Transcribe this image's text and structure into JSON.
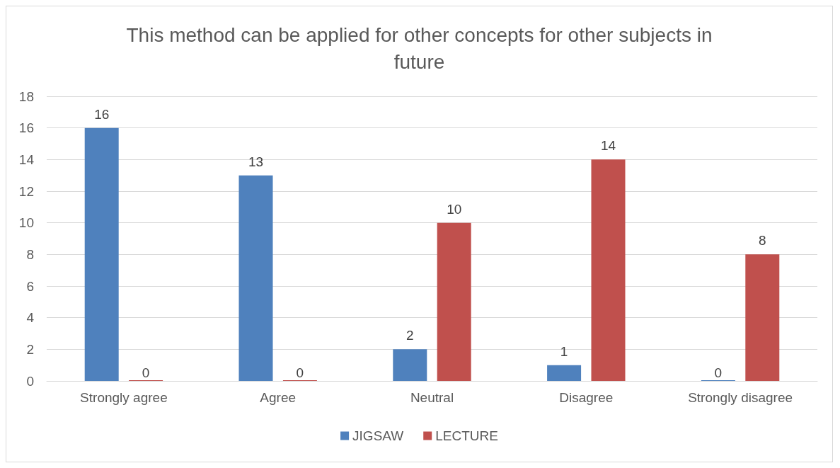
{
  "chart_data": {
    "type": "bar",
    "title": "This method can be applied for other concepts for other subjects in future",
    "categories": [
      "Strongly agree",
      "Agree",
      "Neutral",
      "Disagree",
      "Strongly disagree"
    ],
    "series": [
      {
        "name": "JIGSAW",
        "color": "#4f81bd",
        "values": [
          16,
          13,
          2,
          1,
          0
        ]
      },
      {
        "name": "LECTURE",
        "color": "#c0504d",
        "values": [
          0,
          0,
          10,
          14,
          8
        ]
      }
    ],
    "ylim": [
      0,
      18
    ],
    "yticks": [
      0,
      2,
      4,
      6,
      8,
      10,
      12,
      14,
      16,
      18
    ],
    "grid": "y",
    "legend": "bottom",
    "data_labels": true
  }
}
